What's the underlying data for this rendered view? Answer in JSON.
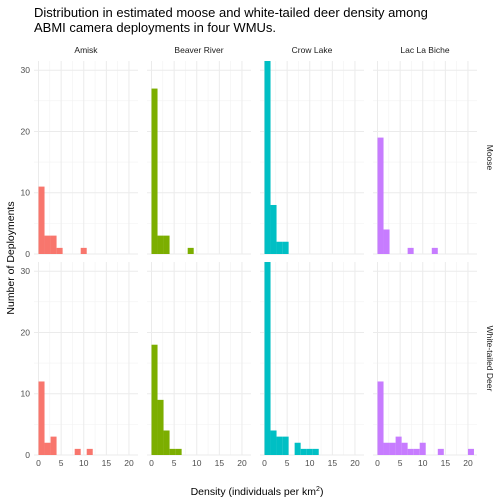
{
  "chart_data": {
    "type": "bar",
    "title_lines": [
      "Distribution in estimated moose and white-tailed deer density among",
      "ABMI camera deployments in four WMUs."
    ],
    "xlabel": "Density (individuals per km",
    "xlabel_sup": "2",
    "xlabel_end": ")",
    "ylabel": "Number of Deployments",
    "xlim": [
      -1,
      22
    ],
    "ylim": [
      0,
      31.5
    ],
    "x_ticks": [
      0,
      5,
      10,
      15,
      20
    ],
    "y_ticks": [
      0,
      10,
      20,
      30
    ],
    "bin_width": 1.33,
    "columns": [
      "Amisk",
      "Beaver River",
      "Crow Lake",
      "Lac La Biche"
    ],
    "rows": [
      "Moose",
      "White-tailed Deer"
    ],
    "colors": {
      "Amisk": "#F8766D",
      "Beaver River": "#7CAE00",
      "Crow Lake": "#00BFC4",
      "Lac La Biche": "#C77CFF"
    },
    "panels": [
      {
        "row": "Moose",
        "col": "Amisk",
        "bins": [
          [
            0,
            11
          ],
          [
            1.33,
            3
          ],
          [
            2.66,
            3
          ],
          [
            4,
            1
          ],
          [
            9.33,
            1
          ]
        ]
      },
      {
        "row": "Moose",
        "col": "Beaver River",
        "bins": [
          [
            0,
            27
          ],
          [
            1.33,
            3
          ],
          [
            2.66,
            3
          ],
          [
            8,
            1
          ]
        ]
      },
      {
        "row": "Moose",
        "col": "Crow Lake",
        "bins": [
          [
            0,
            31.5
          ],
          [
            1.33,
            8
          ],
          [
            2.66,
            2
          ],
          [
            4,
            2
          ]
        ]
      },
      {
        "row": "Moose",
        "col": "Lac La Biche",
        "bins": [
          [
            0,
            19
          ],
          [
            1.33,
            4
          ],
          [
            6.66,
            1
          ],
          [
            12,
            1
          ]
        ]
      },
      {
        "row": "White-tailed Deer",
        "col": "Amisk",
        "bins": [
          [
            0,
            12
          ],
          [
            1.33,
            2
          ],
          [
            2.66,
            3
          ],
          [
            8,
            1
          ],
          [
            10.66,
            1
          ]
        ]
      },
      {
        "row": "White-tailed Deer",
        "col": "Beaver River",
        "bins": [
          [
            0,
            18
          ],
          [
            1.33,
            9
          ],
          [
            2.66,
            4
          ],
          [
            4,
            1
          ],
          [
            5.33,
            1
          ]
        ]
      },
      {
        "row": "White-tailed Deer",
        "col": "Crow Lake",
        "bins": [
          [
            0,
            31.5
          ],
          [
            1.33,
            4
          ],
          [
            2.66,
            3
          ],
          [
            4,
            3
          ],
          [
            6.66,
            2
          ],
          [
            8,
            1
          ],
          [
            9.33,
            1
          ],
          [
            10.66,
            1
          ]
        ]
      },
      {
        "row": "White-tailed Deer",
        "col": "Lac La Biche",
        "bins": [
          [
            0,
            12
          ],
          [
            1.33,
            2
          ],
          [
            2.66,
            2
          ],
          [
            4,
            3
          ],
          [
            5.33,
            2
          ],
          [
            6.66,
            1
          ],
          [
            8,
            1
          ],
          [
            9.33,
            2
          ],
          [
            13.33,
            1
          ],
          [
            20,
            1
          ]
        ]
      }
    ]
  }
}
